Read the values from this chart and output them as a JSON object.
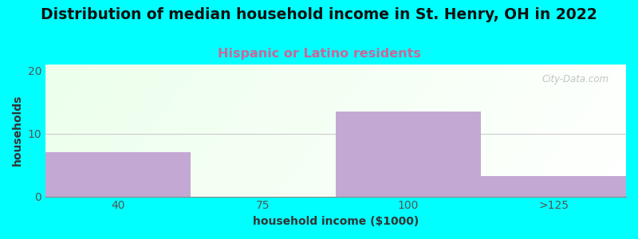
{
  "title": "Distribution of median household income in St. Henry, OH in 2022",
  "subtitle": "Hispanic or Latino residents",
  "xlabel": "household income ($1000)",
  "ylabel": "households",
  "categories": [
    "40",
    "75",
    "100",
    ">125"
  ],
  "values": [
    7,
    0,
    13.5,
    3.2
  ],
  "bar_color": "#c4a8d4",
  "ylim": [
    0,
    21
  ],
  "yticks": [
    0,
    10,
    20
  ],
  "xlim": [
    0,
    4
  ],
  "bg_color": "#00FFFF",
  "title_fontsize": 13.5,
  "subtitle_fontsize": 11.5,
  "subtitle_color": "#cc6699",
  "axis_label_fontsize": 10,
  "tick_fontsize": 10,
  "tick_color": "#555555",
  "watermark": "City-Data.com",
  "grid_color": "#cccccc"
}
